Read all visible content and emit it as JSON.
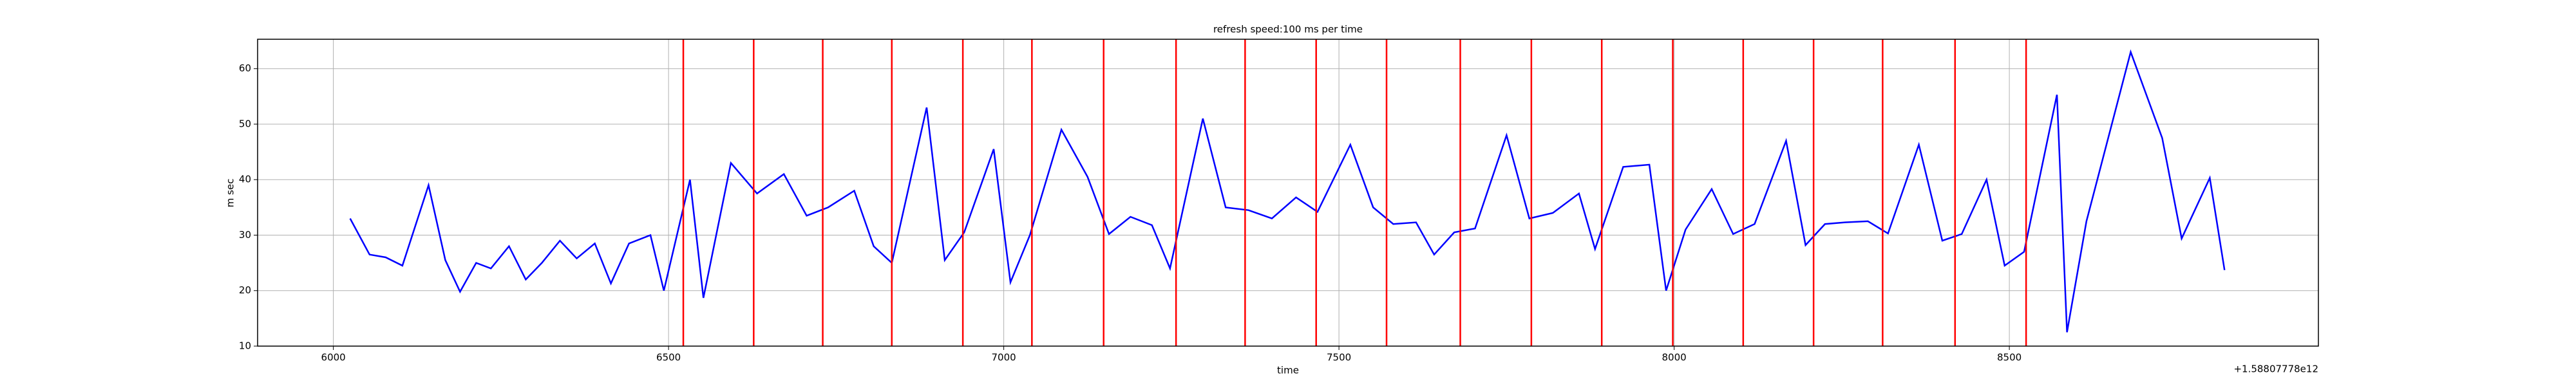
{
  "chart_data": {
    "type": "line",
    "title": "refresh speed:100 ms per time",
    "x_label": "time",
    "y_label": "m sec",
    "x_offset_label": "+1.58807778e12",
    "x": [
      6025,
      6054,
      6078,
      6103,
      6142,
      6167,
      6189,
      6213,
      6235,
      6262,
      6287,
      6311,
      6338,
      6363,
      6390,
      6414,
      6441,
      6473,
      6493,
      6532,
      6552,
      6593,
      6632,
      6672,
      6706,
      6738,
      6777,
      6806,
      6833,
      6885,
      6912,
      6941,
      6985,
      7010,
      7039,
      7086,
      7125,
      7157,
      7189,
      7221,
      7248,
      7297,
      7331,
      7365,
      7400,
      7436,
      7468,
      7517,
      7551,
      7581,
      7615,
      7642,
      7672,
      7703,
      7750,
      7784,
      7819,
      7858,
      7882,
      7924,
      7963,
      7988,
      8017,
      8056,
      8088,
      8120,
      8167,
      8196,
      8225,
      8255,
      8289,
      8319,
      8365,
      8400,
      8429,
      8466,
      8493,
      8522,
      8571,
      8586,
      8615,
      8681,
      8728,
      8757,
      8799,
      8821
    ],
    "series": [
      {
        "color": "#0000ff",
        "values": [
          33,
          26.5,
          26,
          24.5,
          39,
          25.5,
          19.8,
          25,
          24,
          28,
          22,
          25,
          29,
          25.8,
          28.5,
          21.3,
          28.5,
          30,
          20,
          40,
          18.7,
          43,
          37.5,
          41,
          33.5,
          35,
          38,
          28,
          25,
          53,
          25.5,
          30.5,
          45.5,
          21.5,
          30,
          49,
          40.5,
          30.2,
          33.3,
          31.8,
          24,
          51,
          35,
          34.5,
          33,
          36.8,
          34.2,
          46.3,
          35,
          32,
          32.3,
          26.5,
          30.5,
          31.2,
          48,
          33,
          34,
          37.5,
          27.5,
          42.3,
          42.7,
          20,
          31,
          38.3,
          30.2,
          32,
          47,
          28.2,
          32,
          32.3,
          32.5,
          30.3,
          46.3,
          29,
          30.2,
          40,
          24.5,
          27,
          55.3,
          12.5,
          32.5,
          63,
          47.5,
          29.4,
          40.3,
          23.7
        ]
      }
    ],
    "vlines": {
      "color": "#ff0000",
      "x": [
        6522,
        6627,
        6730,
        6833,
        6939,
        7042,
        7149,
        7257,
        7360,
        7466,
        7571,
        7681,
        7787,
        7892,
        7998,
        8103,
        8208,
        8311,
        8419,
        8525
      ]
    },
    "xlim": [
      5887,
      8961
    ],
    "ylim": [
      10,
      65.3
    ],
    "xticks": [
      6000,
      6500,
      7000,
      7500,
      8000,
      8500
    ],
    "yticks": [
      10,
      20,
      30,
      40,
      50,
      60
    ],
    "grid": true
  }
}
